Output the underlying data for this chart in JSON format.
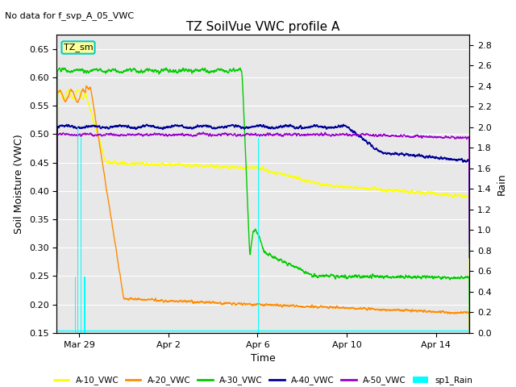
{
  "title": "TZ SoilVue VWC profile A",
  "subtitle": "No data for f_svp_A_05_VWC",
  "xlabel": "Time",
  "ylabel": "Soil Moisture (VWC)",
  "ylabel_right": "Rain",
  "ylim_left": [
    0.15,
    0.675
  ],
  "ylim_right": [
    0.0,
    2.9
  ],
  "yticks_left": [
    0.15,
    0.2,
    0.25,
    0.3,
    0.35,
    0.4,
    0.45,
    0.5,
    0.55,
    0.6,
    0.65
  ],
  "yticks_right": [
    0.0,
    0.2,
    0.4,
    0.6,
    0.8,
    1.0,
    1.2,
    1.4,
    1.6,
    1.8,
    2.0,
    2.2,
    2.4,
    2.6,
    2.8
  ],
  "colors": {
    "A10": "#ffff00",
    "A20": "#ff8c00",
    "A30": "#00cc00",
    "A40": "#000099",
    "A50": "#9900cc",
    "rain": "#00ffff",
    "background": "#e8e8e8",
    "annotation_box": "#ffff99",
    "annotation_border": "#00cccc"
  },
  "legend_labels": [
    "A-10_VWC",
    "A-20_VWC",
    "A-30_VWC",
    "A-40_VWC",
    "A-50_VWC",
    "sp1_Rain"
  ],
  "annotation_text": "TZ_sm",
  "xtick_labels": [
    "Mar 29",
    "Apr 2",
    "Apr 6",
    "Apr 10",
    "Apr 14"
  ],
  "xtick_positions": [
    1,
    5,
    9,
    13,
    17
  ],
  "xlim": [
    0.0,
    18.5
  ],
  "figsize": [
    6.4,
    4.8
  ],
  "dpi": 100
}
